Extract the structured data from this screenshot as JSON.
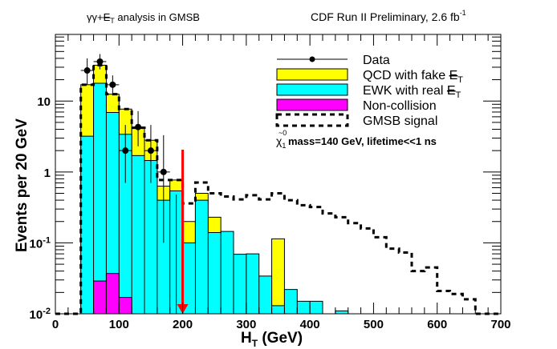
{
  "header": {
    "left_title": "γγ+E̸T analysis in GMSB",
    "left_title_parts": {
      "prefix": "γγ+",
      "met": "E",
      "sub": "T",
      "suffix": " analysis in GMSB"
    },
    "right_title": "CDF Run II Preliminary, 2.6 fb",
    "right_title_sup": "-1"
  },
  "chart_data": {
    "type": "bar",
    "subtype": "stacked-histogram-log",
    "xlabel": "H",
    "xlabel_sub": "T",
    "xlabel_unit": " (GeV)",
    "ylabel": "Events per 20 GeV",
    "xlim": [
      0,
      700
    ],
    "ylim": [
      0.01,
      87
    ],
    "yscale": "log",
    "x_ticks": [
      0,
      100,
      200,
      300,
      400,
      500,
      600,
      700
    ],
    "x_tick_labels": [
      "0",
      "100",
      "200",
      "300",
      "400",
      "500",
      "600",
      "700"
    ],
    "y_ticks": [
      0.01,
      0.1,
      1,
      10
    ],
    "y_tick_labels": [
      {
        "base": "10",
        "exp": "-2"
      },
      {
        "base": "10",
        "exp": "-1"
      },
      {
        "base": "1",
        "exp": ""
      },
      {
        "base": "10",
        "exp": ""
      }
    ],
    "bin_width": 20,
    "series": [
      {
        "name": "Non-collision",
        "color": "#ff00ff",
        "bins": [
          [
            60,
            0.029
          ],
          [
            80,
            0.037
          ],
          [
            100,
            0.017
          ]
        ]
      },
      {
        "name": "EWK with real E̸T",
        "color": "#00ffff",
        "bins": [
          [
            40,
            3.2
          ],
          [
            60,
            17.8
          ],
          [
            80,
            6.9
          ],
          [
            100,
            3.4
          ],
          [
            120,
            1.7
          ],
          [
            140,
            1.45
          ],
          [
            160,
            0.4
          ],
          [
            180,
            0.54
          ],
          [
            200,
            0.1
          ],
          [
            220,
            0.4
          ],
          [
            240,
            0.14
          ],
          [
            260,
            0.145
          ],
          [
            280,
            0.069
          ],
          [
            300,
            0.07
          ],
          [
            320,
            0.034
          ],
          [
            340,
            0.013
          ],
          [
            360,
            0.022
          ],
          [
            380,
            0.015
          ],
          [
            400,
            0.015
          ],
          [
            440,
            0.011
          ]
        ]
      },
      {
        "name": "QCD with fake E̸T",
        "color": "#ffff00",
        "bins_total": [
          [
            40,
            17
          ],
          [
            60,
            32
          ],
          [
            80,
            12.5
          ],
          [
            100,
            7.7
          ],
          [
            120,
            4.2
          ],
          [
            140,
            2.8
          ],
          [
            160,
            0.63
          ],
          [
            180,
            0.77
          ],
          [
            200,
            0.2
          ],
          [
            220,
            0.5
          ],
          [
            240,
            0.23
          ],
          [
            340,
            0.114
          ]
        ]
      },
      {
        "name": "GMSB signal",
        "style": "dashed",
        "bins": [
          [
            40,
            17
          ],
          [
            60,
            32
          ],
          [
            80,
            12.5
          ],
          [
            100,
            7.7
          ],
          [
            120,
            4.2
          ],
          [
            140,
            2.8
          ],
          [
            160,
            0.77
          ],
          [
            180,
            0.77
          ],
          [
            200,
            0.36
          ],
          [
            220,
            0.71
          ],
          [
            240,
            0.5
          ],
          [
            260,
            0.45
          ],
          [
            280,
            0.41
          ],
          [
            300,
            0.47
          ],
          [
            320,
            0.41
          ],
          [
            340,
            0.5
          ],
          [
            360,
            0.4
          ],
          [
            380,
            0.34
          ],
          [
            400,
            0.32
          ],
          [
            420,
            0.26
          ],
          [
            440,
            0.23
          ],
          [
            460,
            0.19
          ],
          [
            480,
            0.16
          ],
          [
            500,
            0.12
          ],
          [
            520,
            0.083
          ],
          [
            540,
            0.073
          ],
          [
            560,
            0.04
          ],
          [
            580,
            0.045
          ],
          [
            600,
            0.021
          ],
          [
            620,
            0.019
          ],
          [
            640,
            0.016
          ]
        ]
      },
      {
        "name": "Data",
        "style": "points",
        "points": [
          [
            50,
            27,
            17,
            40
          ],
          [
            70,
            36,
            28,
            46
          ],
          [
            90,
            17,
            12,
            23
          ],
          [
            110,
            2.0,
            0.7,
            4.6
          ],
          [
            130,
            4.3,
            2.3,
            7.2
          ],
          [
            150,
            2.0,
            0.7,
            4.6
          ],
          [
            170,
            1.0,
            0.1,
            3.3
          ],
          [
            190,
            0.0,
            0,
            0
          ]
        ]
      }
    ],
    "legend": {
      "position": "top-right",
      "entries": [
        {
          "label": "Data",
          "kind": "marker"
        },
        {
          "label": "QCD with fake ",
          "met": true,
          "kind": "fill",
          "color": "#ffff00"
        },
        {
          "label": "EWK with real ",
          "met": true,
          "kind": "fill",
          "color": "#00ffff"
        },
        {
          "label": "Non-collision",
          "kind": "fill",
          "color": "#ff00ff"
        },
        {
          "label": "GMSB signal",
          "kind": "dashed"
        }
      ],
      "note": "mass=140 GeV, lifetime<<1 ns",
      "note_symbol": "χ̃",
      "note_sub": "1",
      "note_sup": "0"
    },
    "annotations": [
      {
        "kind": "arrow",
        "color": "#ff0000",
        "x": 200,
        "y_from": 2.0,
        "y_to": 0.01
      }
    ]
  }
}
